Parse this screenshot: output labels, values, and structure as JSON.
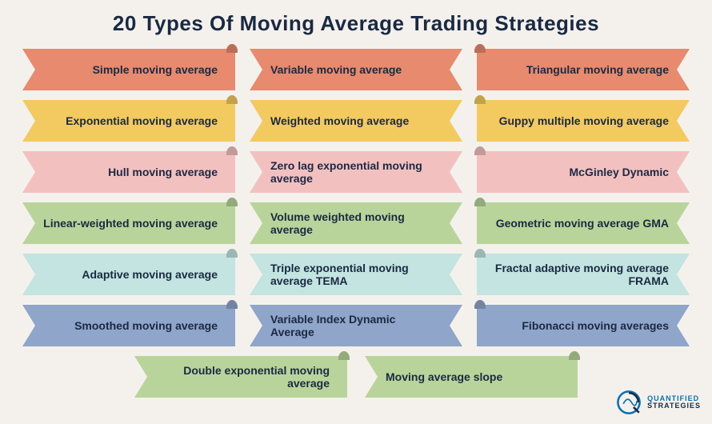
{
  "title": {
    "text": "20 Types Of Moving Average Trading Strategies",
    "fontsize": 26,
    "color": "#1a2942"
  },
  "background_color": "#f4f1ec",
  "ribbon": {
    "height": 52,
    "notch": 16,
    "fontsize": 14,
    "text_color": "#1a2942"
  },
  "row_colors": [
    "#e88a6e",
    "#f3ca5f",
    "#f3c0c0",
    "#b9d49a",
    "#c3e4e0",
    "#8fa5c9",
    "#b9d49a"
  ],
  "rows": [
    {
      "color": "#e88a6e",
      "items": [
        {
          "pos": "left",
          "label": "Simple moving average"
        },
        {
          "pos": "mid",
          "label": "Variable moving average"
        },
        {
          "pos": "right",
          "label": "Triangular moving average"
        }
      ]
    },
    {
      "color": "#f3ca5f",
      "items": [
        {
          "pos": "left",
          "label": "Exponential moving average"
        },
        {
          "pos": "mid",
          "label": "Weighted moving average"
        },
        {
          "pos": "right",
          "label": "Guppy multiple moving average"
        }
      ]
    },
    {
      "color": "#f3c0c0",
      "items": [
        {
          "pos": "left",
          "label": "Hull moving average"
        },
        {
          "pos": "mid",
          "label": "Zero lag exponential moving average"
        },
        {
          "pos": "right",
          "label": "McGinley Dynamic"
        }
      ]
    },
    {
      "color": "#b9d49a",
      "items": [
        {
          "pos": "left",
          "label": "Linear-weighted moving average"
        },
        {
          "pos": "mid",
          "label": "Volume weighted moving average"
        },
        {
          "pos": "right",
          "label": "Geometric moving average GMA"
        }
      ]
    },
    {
      "color": "#c3e4e0",
      "items": [
        {
          "pos": "left",
          "label": "Adaptive moving average"
        },
        {
          "pos": "mid",
          "label": "Triple exponential moving average TEMA"
        },
        {
          "pos": "right",
          "label": "Fractal adaptive moving average FRAMA"
        }
      ]
    },
    {
      "color": "#8fa5c9",
      "items": [
        {
          "pos": "left",
          "label": "Smoothed moving average"
        },
        {
          "pos": "mid",
          "label": "Variable Index Dynamic Average"
        },
        {
          "pos": "right",
          "label": "Fibonacci moving averages"
        }
      ]
    },
    {
      "color": "#b9d49a",
      "bottom": true,
      "items": [
        {
          "pos": "left",
          "label": "Double exponential moving average"
        },
        {
          "pos": "left",
          "label": "Moving average slope",
          "align": "start"
        }
      ]
    }
  ],
  "logo": {
    "line1": "QUANTIFIED",
    "line2": "STRATEGIES",
    "accent": "#0b6fb3",
    "ink": "#1a2942"
  }
}
